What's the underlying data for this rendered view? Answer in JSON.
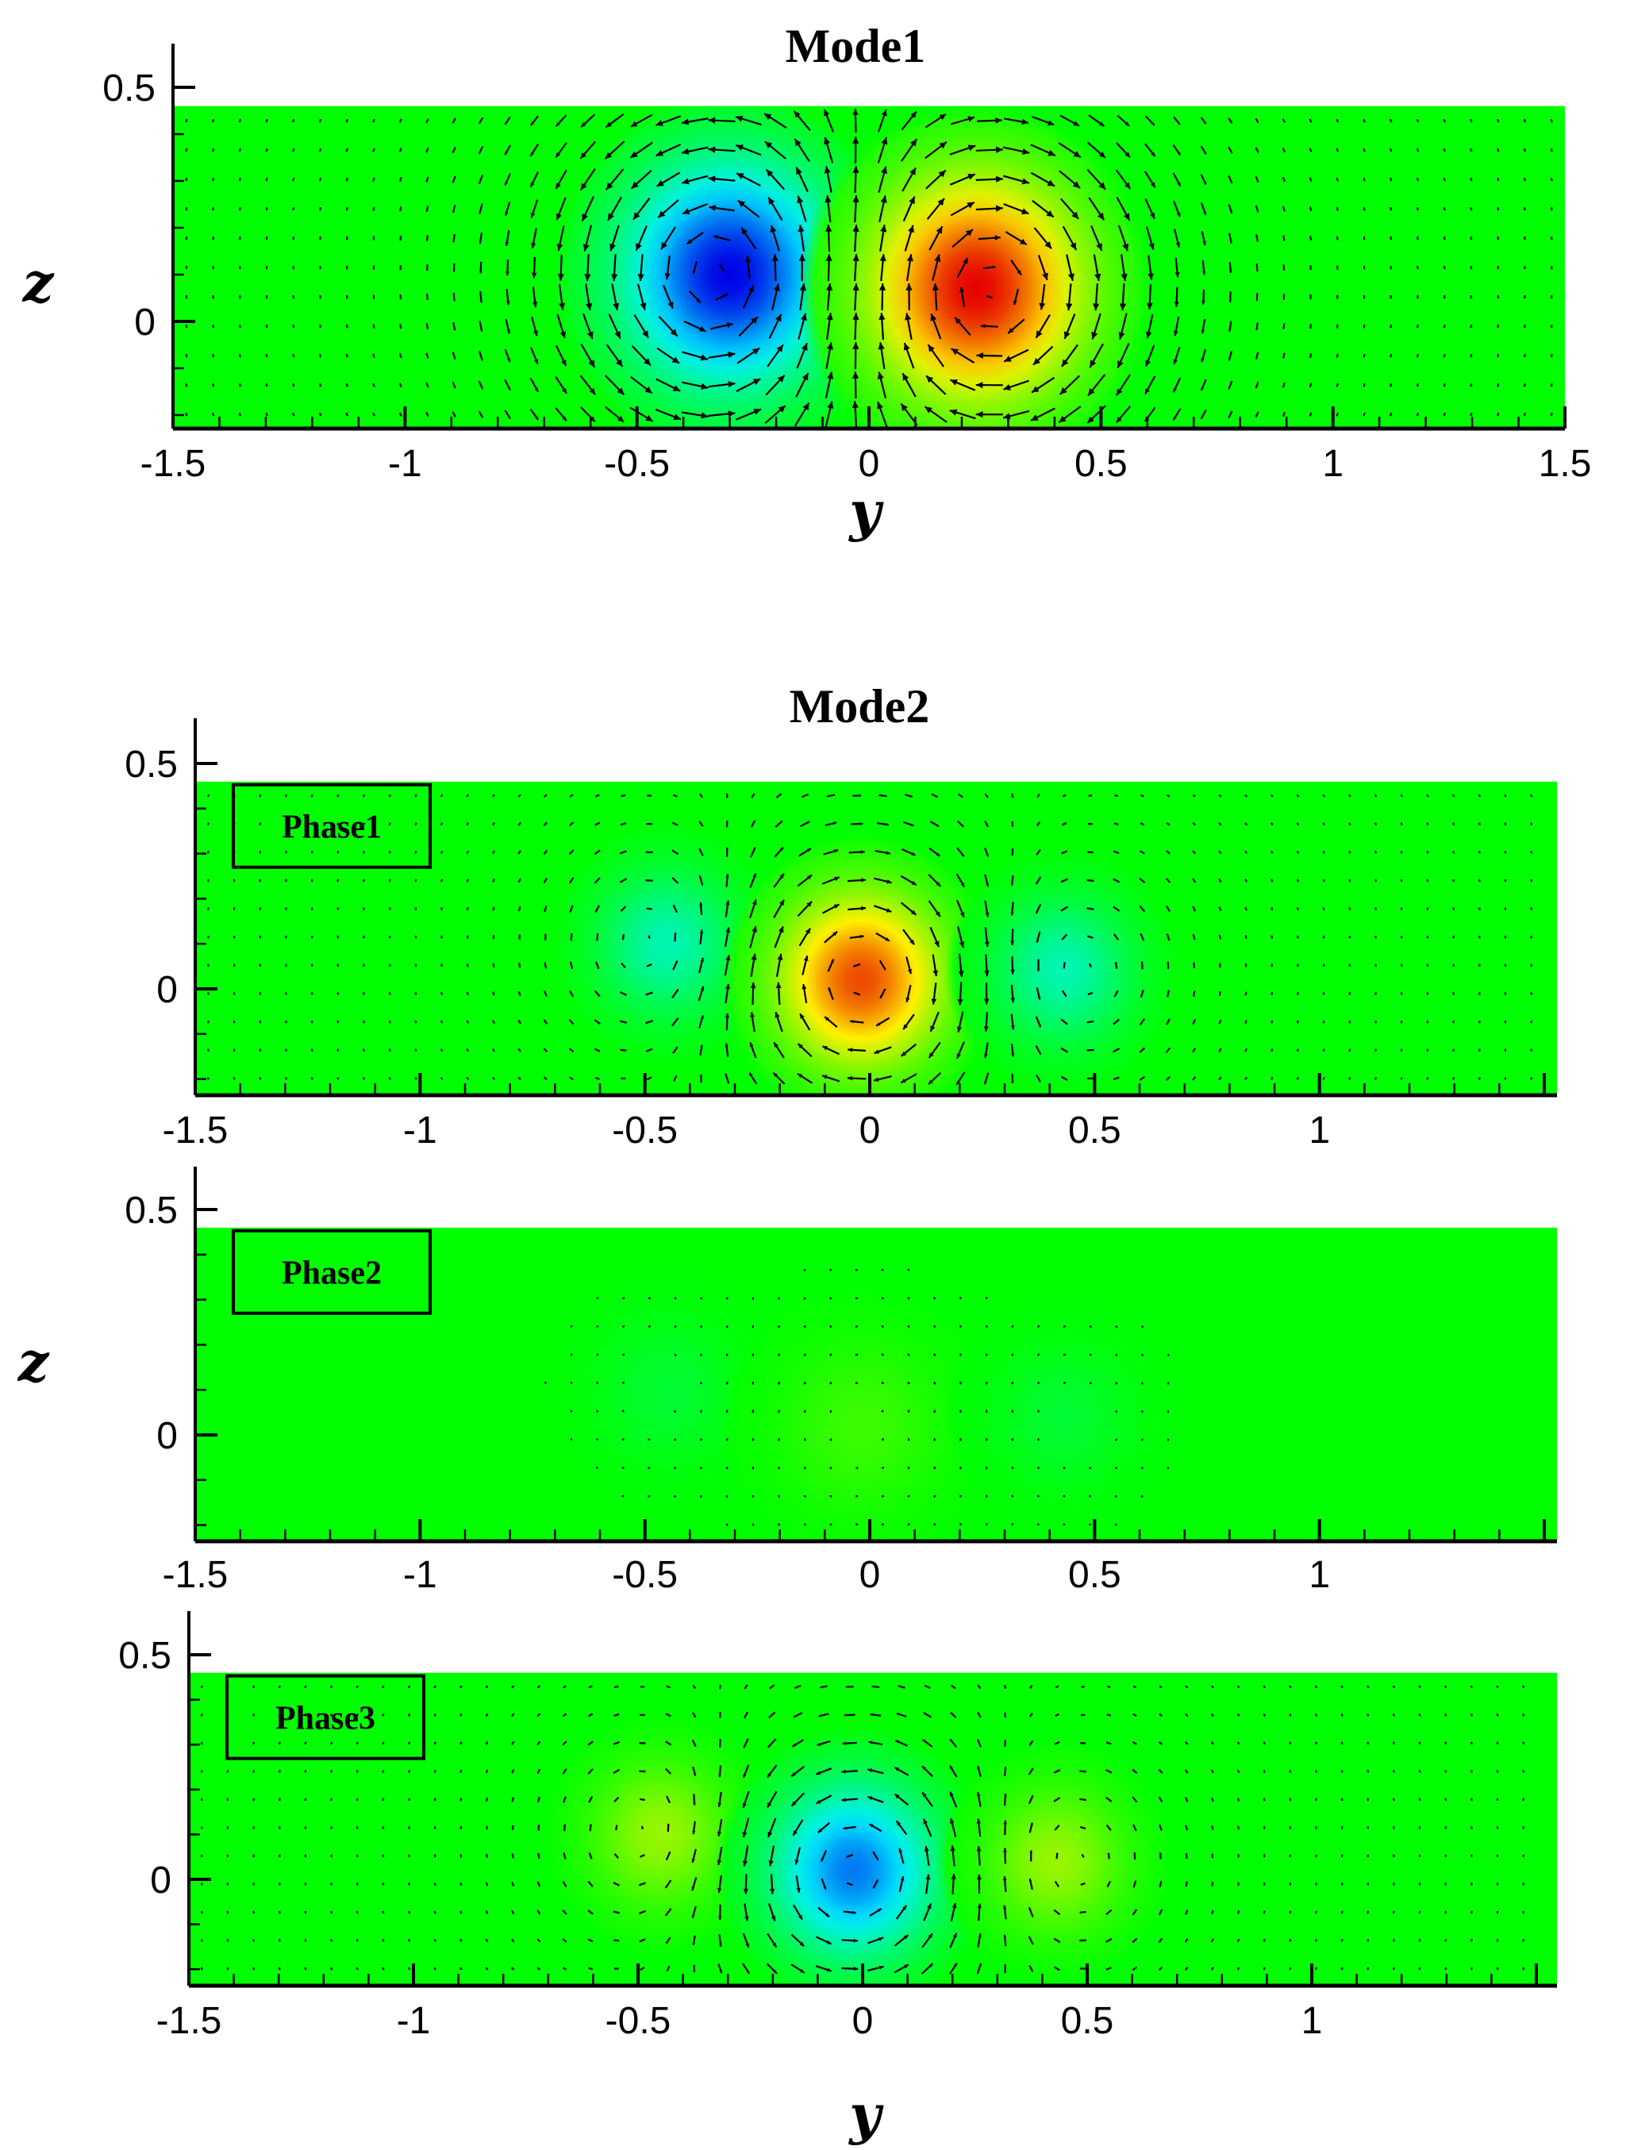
{
  "chart_data": [
    {
      "type": "heatmap",
      "title": "Mode1",
      "panel_label": "",
      "xlabel": "y",
      "ylabel": "z",
      "xticks": [
        "-1.5",
        "-1",
        "-0.5",
        "0",
        "0.5",
        "1",
        "1.5"
      ],
      "yticks": [
        "0",
        "0.5"
      ],
      "xlim": [
        -1.5,
        1.5
      ],
      "ylim": [
        -0.23,
        0.5
      ],
      "data_extent": {
        "y": [
          -1.5,
          1.5
        ],
        "z": [
          -0.23,
          0.46
        ]
      },
      "vortices": [
        {
          "y": -0.3,
          "z": 0.1,
          "sign": -1,
          "strength": 1.0,
          "radius": 0.16
        },
        {
          "y": 0.23,
          "z": 0.07,
          "sign": 1,
          "strength": 1.0,
          "radius": 0.16
        }
      ],
      "arrow_scale": 1.0,
      "colors": {
        "positive": "#e60000",
        "neutral": "#00ff00",
        "negative": "#0000e6"
      }
    },
    {
      "type": "heatmap",
      "title": "Mode2",
      "panel_label": "Phase1",
      "xlabel": "",
      "ylabel": "",
      "xticks": [
        "-1.5",
        "-1",
        "-0.5",
        "0",
        "0.5",
        "1"
      ],
      "yticks": [
        "0",
        "0.5"
      ],
      "xlim": [
        -1.5,
        1.5
      ],
      "ylim": [
        -0.23,
        0.5
      ],
      "data_extent": {
        "y": [
          -1.5,
          1.5
        ],
        "z": [
          -0.23,
          0.46
        ]
      },
      "vortices": [
        {
          "y": -0.45,
          "z": 0.1,
          "sign": -1,
          "strength": 0.35,
          "radius": 0.11
        },
        {
          "y": -0.02,
          "z": 0.02,
          "sign": 1,
          "strength": 0.85,
          "radius": 0.13
        },
        {
          "y": 0.43,
          "z": 0.04,
          "sign": -1,
          "strength": 0.35,
          "radius": 0.11
        }
      ],
      "arrow_scale": 0.8,
      "colors": {
        "positive": "#e60000",
        "neutral": "#00ff00",
        "negative": "#0000e6"
      }
    },
    {
      "type": "heatmap",
      "title": "",
      "panel_label": "Phase2",
      "xlabel": "",
      "ylabel": "z",
      "xticks": [
        "-1.5",
        "-1",
        "-0.5",
        "0",
        "0.5",
        "1"
      ],
      "yticks": [
        "0",
        "0.5"
      ],
      "xlim": [
        -1.5,
        1.5
      ],
      "ylim": [
        -0.23,
        0.5
      ],
      "data_extent": {
        "y": [
          -1.5,
          1.5
        ],
        "z": [
          -0.23,
          0.46
        ]
      },
      "vortices": [
        {
          "y": -0.45,
          "z": 0.1,
          "sign": -1,
          "strength": 0.1,
          "radius": 0.11
        },
        {
          "y": -0.02,
          "z": 0.02,
          "sign": 1,
          "strength": 0.12,
          "radius": 0.13
        },
        {
          "y": 0.43,
          "z": 0.04,
          "sign": -1,
          "strength": 0.1,
          "radius": 0.11
        }
      ],
      "arrow_scale": 0.35,
      "colors": {
        "positive": "#e60000",
        "neutral": "#00ff00",
        "negative": "#0000e6"
      }
    },
    {
      "type": "heatmap",
      "title": "",
      "panel_label": "Phase3",
      "xlabel": "y",
      "ylabel": "",
      "xticks": [
        "-1.5",
        "-1",
        "-0.5",
        "0",
        "0.5",
        "1"
      ],
      "yticks": [
        "0",
        "0.5"
      ],
      "xlim": [
        -1.5,
        1.5
      ],
      "ylim": [
        -0.23,
        0.5
      ],
      "data_extent": {
        "y": [
          -1.5,
          1.5
        ],
        "z": [
          -0.23,
          0.46
        ]
      },
      "vortices": [
        {
          "y": -0.45,
          "z": 0.1,
          "sign": 1,
          "strength": 0.3,
          "radius": 0.11
        },
        {
          "y": -0.02,
          "z": 0.02,
          "sign": -1,
          "strength": 0.75,
          "radius": 0.13
        },
        {
          "y": 0.43,
          "z": 0.04,
          "sign": 1,
          "strength": 0.3,
          "radius": 0.11
        }
      ],
      "arrow_scale": 0.8,
      "colors": {
        "positive": "#e60000",
        "neutral": "#00ff00",
        "negative": "#0000e6"
      }
    }
  ]
}
